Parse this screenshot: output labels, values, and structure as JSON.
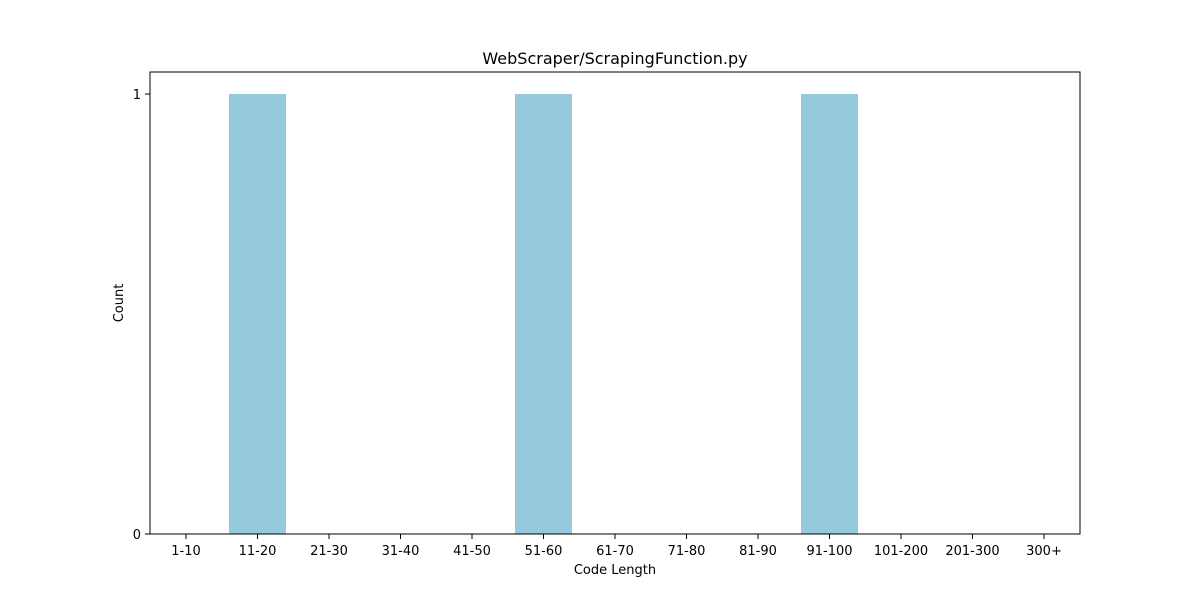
{
  "chart_data": {
    "type": "bar",
    "title": "WebScraper/ScrapingFunction.py",
    "xlabel": "Code Length",
    "ylabel": "Count",
    "categories": [
      "1-10",
      "11-20",
      "21-30",
      "31-40",
      "41-50",
      "51-60",
      "61-70",
      "71-80",
      "81-90",
      "91-100",
      "101-200",
      "201-300",
      "300+"
    ],
    "values": [
      0,
      1,
      0,
      0,
      0,
      1,
      0,
      0,
      0,
      1,
      0,
      0,
      0
    ],
    "ylim": [
      0,
      1.05
    ],
    "yticks": [
      "0",
      "1"
    ],
    "bar_color": "#96c9dd",
    "grid": false,
    "legend": "none"
  }
}
